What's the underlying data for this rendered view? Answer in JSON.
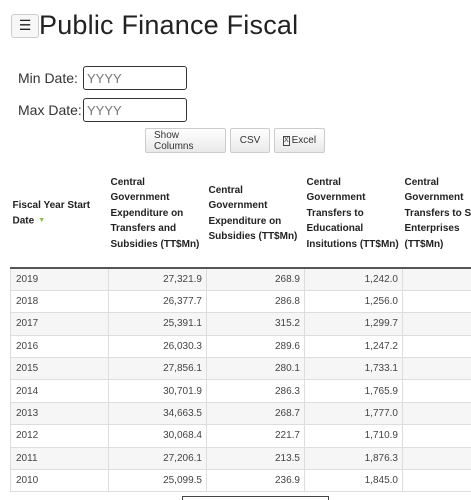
{
  "header": {
    "menu_icon": "☰",
    "title": "Public Finance Fiscal"
  },
  "filters": {
    "min_label": "Min Date:",
    "min_placeholder": "YYYY",
    "max_label": "Max Date:",
    "max_placeholder": "YYYY"
  },
  "toolbar": {
    "show_columns": "Show Columns",
    "csv": "CSV",
    "excel": "Excel",
    "excel_icon": "X"
  },
  "table": {
    "sort_icon": "▼",
    "headers": [
      "Fiscal Year Start Date",
      "Central Government Expenditure on Transfers and Subsidies (TT$Mn)",
      "Central Government Expenditure on Subsidies (TT$Mn)",
      "Central Government Transfers to Educational Insitutions (TT$Mn)",
      "Central Government Transfers to State Enterprises (TT$Mn)"
    ],
    "rows": [
      [
        "2019",
        "27,321.9",
        "268.9",
        "1,242.0",
        ""
      ],
      [
        "2018",
        "26,377.7",
        "286.8",
        "1,256.0",
        ""
      ],
      [
        "2017",
        "25,391.1",
        "315.2",
        "1,299.7",
        ""
      ],
      [
        "2016",
        "26,030.3",
        "289.6",
        "1,247.2",
        ""
      ],
      [
        "2015",
        "27,856.1",
        "280.1",
        "1,733.1",
        ""
      ],
      [
        "2014",
        "30,701.9",
        "286.3",
        "1,765.9",
        ""
      ],
      [
        "2013",
        "34,663.5",
        "268.7",
        "1,777.0",
        ""
      ],
      [
        "2012",
        "30,068.4",
        "221.7",
        "1,710.9",
        ""
      ],
      [
        "2011",
        "27,206.1",
        "213.5",
        "1,876.3",
        ""
      ],
      [
        "2010",
        "25,099.5",
        "236.9",
        "1,845.0",
        ""
      ]
    ]
  }
}
